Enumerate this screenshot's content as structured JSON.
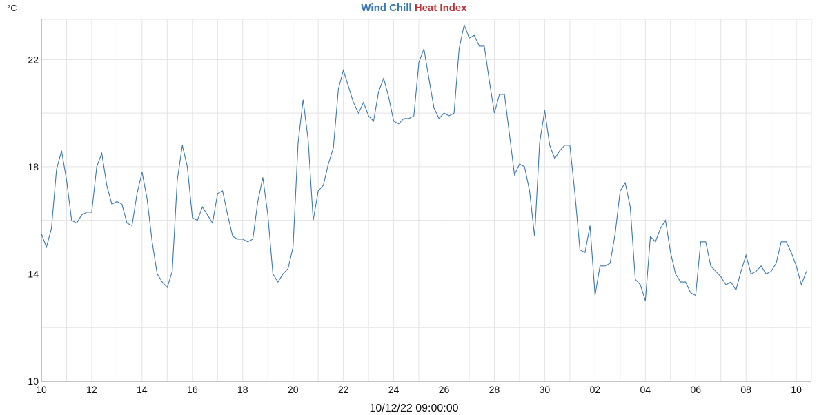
{
  "unit_label": "°C",
  "legend": {
    "wind_chill": "Wind Chill",
    "heat_index": "Heat Index"
  },
  "timestamp": "10/12/22 09:00:00",
  "colors": {
    "wind_chill": "#3a78b0",
    "heat_index": "#b8343a",
    "grid": "#e3e3e3"
  },
  "chart_data": {
    "type": "line",
    "title": "",
    "xlabel": "",
    "ylabel": "°C",
    "ylim": [
      10,
      23.5
    ],
    "yticks": [
      10,
      14,
      18,
      22
    ],
    "xlim": [
      0,
      306
    ],
    "xticks": [
      {
        "pos": 0,
        "label": "10"
      },
      {
        "pos": 20,
        "label": "12"
      },
      {
        "pos": 40,
        "label": "14"
      },
      {
        "pos": 60,
        "label": "16"
      },
      {
        "pos": 80,
        "label": "18"
      },
      {
        "pos": 100,
        "label": "20"
      },
      {
        "pos": 120,
        "label": "22"
      },
      {
        "pos": 140,
        "label": "24"
      },
      {
        "pos": 160,
        "label": "26"
      },
      {
        "pos": 180,
        "label": "28"
      },
      {
        "pos": 200,
        "label": "30"
      },
      {
        "pos": 220,
        "label": "02"
      },
      {
        "pos": 240,
        "label": "04"
      },
      {
        "pos": 260,
        "label": "06"
      },
      {
        "pos": 280,
        "label": "08"
      },
      {
        "pos": 300,
        "label": "10"
      }
    ],
    "grid": true,
    "legend_position": "top-center",
    "series": [
      {
        "name": "Wind Chill",
        "color": "#3a78b0",
        "points": [
          [
            0,
            15.5
          ],
          [
            2,
            15.0
          ],
          [
            4,
            15.7
          ],
          [
            6,
            17.9
          ],
          [
            8,
            18.6
          ],
          [
            10,
            17.5
          ],
          [
            12,
            16.0
          ],
          [
            14,
            15.9
          ],
          [
            16,
            16.2
          ],
          [
            18,
            16.3
          ],
          [
            20,
            16.3
          ],
          [
            22,
            18.0
          ],
          [
            24,
            18.5
          ],
          [
            26,
            17.3
          ],
          [
            28,
            16.6
          ],
          [
            30,
            16.7
          ],
          [
            32,
            16.6
          ],
          [
            34,
            15.9
          ],
          [
            36,
            15.8
          ],
          [
            38,
            17.0
          ],
          [
            40,
            17.8
          ],
          [
            42,
            16.8
          ],
          [
            44,
            15.2
          ],
          [
            46,
            14.0
          ],
          [
            48,
            13.7
          ],
          [
            50,
            13.5
          ],
          [
            52,
            14.1
          ],
          [
            54,
            17.5
          ],
          [
            56,
            18.8
          ],
          [
            58,
            18.0
          ],
          [
            60,
            16.1
          ],
          [
            62,
            16.0
          ],
          [
            64,
            16.5
          ],
          [
            66,
            16.2
          ],
          [
            68,
            15.9
          ],
          [
            70,
            17.0
          ],
          [
            72,
            17.1
          ],
          [
            74,
            16.2
          ],
          [
            76,
            15.4
          ],
          [
            78,
            15.3
          ],
          [
            80,
            15.3
          ],
          [
            82,
            15.2
          ],
          [
            84,
            15.3
          ],
          [
            86,
            16.7
          ],
          [
            88,
            17.6
          ],
          [
            90,
            16.2
          ],
          [
            92,
            14.0
          ],
          [
            94,
            13.7
          ],
          [
            96,
            14.0
          ],
          [
            98,
            14.2
          ],
          [
            100,
            15.0
          ],
          [
            102,
            18.9
          ],
          [
            104,
            20.5
          ],
          [
            106,
            19.0
          ],
          [
            108,
            16.0
          ],
          [
            110,
            17.1
          ],
          [
            112,
            17.3
          ],
          [
            114,
            18.1
          ],
          [
            116,
            18.7
          ],
          [
            118,
            20.9
          ],
          [
            120,
            21.6
          ],
          [
            122,
            21.0
          ],
          [
            124,
            20.4
          ],
          [
            126,
            20.0
          ],
          [
            128,
            20.4
          ],
          [
            130,
            19.9
          ],
          [
            132,
            19.7
          ],
          [
            134,
            20.8
          ],
          [
            136,
            21.3
          ],
          [
            138,
            20.6
          ],
          [
            140,
            19.7
          ],
          [
            142,
            19.6
          ],
          [
            144,
            19.8
          ],
          [
            146,
            19.8
          ],
          [
            148,
            19.9
          ],
          [
            150,
            21.9
          ],
          [
            152,
            22.4
          ],
          [
            154,
            21.3
          ],
          [
            156,
            20.2
          ],
          [
            158,
            19.8
          ],
          [
            160,
            20.0
          ],
          [
            162,
            19.9
          ],
          [
            164,
            20.0
          ],
          [
            166,
            22.4
          ],
          [
            168,
            23.3
          ],
          [
            170,
            22.8
          ],
          [
            172,
            22.9
          ],
          [
            174,
            22.5
          ],
          [
            176,
            22.5
          ],
          [
            178,
            21.2
          ],
          [
            180,
            20.0
          ],
          [
            182,
            20.7
          ],
          [
            184,
            20.7
          ],
          [
            186,
            19.2
          ],
          [
            188,
            17.7
          ],
          [
            190,
            18.1
          ],
          [
            192,
            18.0
          ],
          [
            194,
            17.1
          ],
          [
            196,
            15.4
          ],
          [
            198,
            18.9
          ],
          [
            200,
            20.1
          ],
          [
            202,
            18.8
          ],
          [
            204,
            18.3
          ],
          [
            206,
            18.6
          ],
          [
            208,
            18.8
          ],
          [
            210,
            18.8
          ],
          [
            212,
            17.0
          ],
          [
            214,
            14.9
          ],
          [
            216,
            14.8
          ],
          [
            218,
            15.8
          ],
          [
            220,
            13.2
          ],
          [
            222,
            14.3
          ],
          [
            224,
            14.3
          ],
          [
            226,
            14.4
          ],
          [
            228,
            15.5
          ],
          [
            230,
            17.1
          ],
          [
            232,
            17.4
          ],
          [
            234,
            16.5
          ],
          [
            236,
            13.8
          ],
          [
            238,
            13.6
          ],
          [
            240,
            13.0
          ],
          [
            242,
            15.4
          ],
          [
            244,
            15.2
          ],
          [
            246,
            15.7
          ],
          [
            248,
            16.0
          ],
          [
            250,
            14.8
          ],
          [
            252,
            14.0
          ],
          [
            254,
            13.7
          ],
          [
            256,
            13.7
          ],
          [
            258,
            13.3
          ],
          [
            260,
            13.2
          ],
          [
            262,
            15.2
          ],
          [
            264,
            15.2
          ],
          [
            266,
            14.3
          ],
          [
            268,
            14.1
          ],
          [
            270,
            13.9
          ],
          [
            272,
            13.6
          ],
          [
            274,
            13.7
          ],
          [
            276,
            13.4
          ],
          [
            278,
            14.1
          ],
          [
            280,
            14.7
          ],
          [
            282,
            14.0
          ],
          [
            284,
            14.1
          ],
          [
            286,
            14.3
          ],
          [
            288,
            14.0
          ],
          [
            290,
            14.1
          ],
          [
            292,
            14.4
          ],
          [
            294,
            15.2
          ],
          [
            296,
            15.2
          ],
          [
            298,
            14.8
          ],
          [
            300,
            14.3
          ],
          [
            302,
            13.6
          ],
          [
            304,
            14.1
          ]
        ]
      }
    ]
  }
}
